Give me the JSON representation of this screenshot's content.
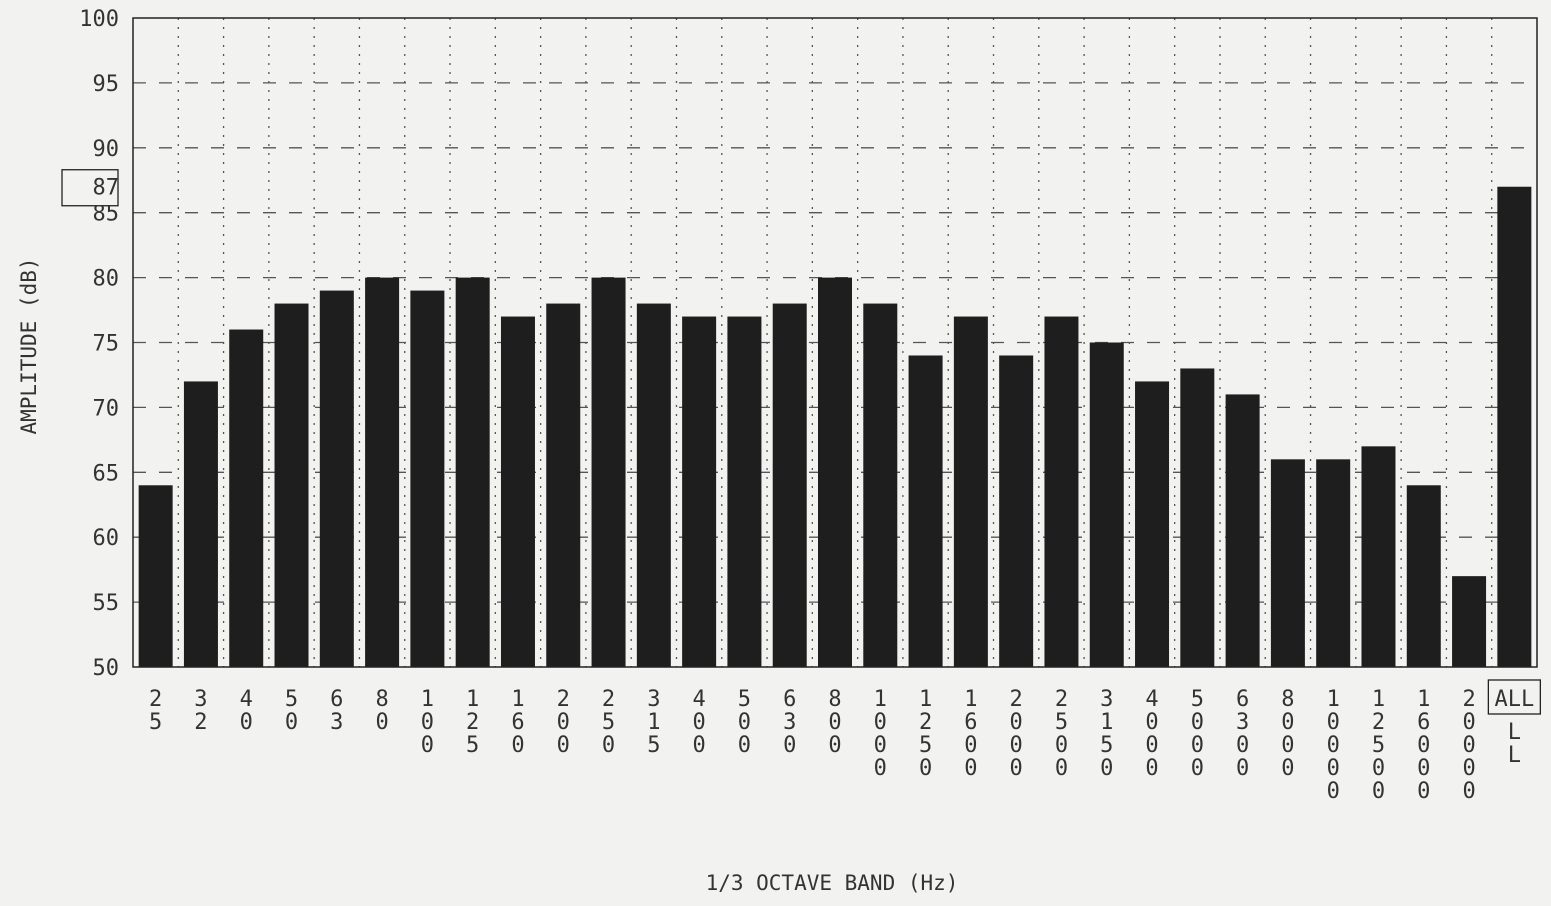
{
  "chart_data": {
    "type": "bar",
    "xlabel": "1/3 OCTAVE BAND (Hz)",
    "ylabel": "AMPLITUDE (dB)",
    "ylim": [
      50,
      100
    ],
    "yticks": [
      50,
      55,
      60,
      65,
      70,
      75,
      80,
      85,
      90,
      95,
      100
    ],
    "grid": true,
    "categories": [
      "25",
      "32",
      "40",
      "50",
      "63",
      "80",
      "100",
      "125",
      "160",
      "200",
      "250",
      "315",
      "400",
      "500",
      "630",
      "800",
      "1000",
      "1250",
      "1600",
      "2000",
      "2500",
      "3150",
      "4000",
      "5000",
      "6300",
      "8000",
      "10000",
      "12500",
      "16000",
      "20000",
      "ALL"
    ],
    "values": [
      64,
      72,
      76,
      78,
      79,
      80,
      79,
      80,
      77,
      78,
      80,
      78,
      77,
      77,
      78,
      80,
      78,
      74,
      77,
      74,
      77,
      75,
      72,
      73,
      71,
      66,
      66,
      67,
      64,
      57,
      87
    ],
    "highlight": {
      "category": "ALL",
      "value_label": "87"
    },
    "colors": {
      "bar": "#1e1e1e",
      "background": "#f2f2f0",
      "grid": "#555555"
    }
  }
}
